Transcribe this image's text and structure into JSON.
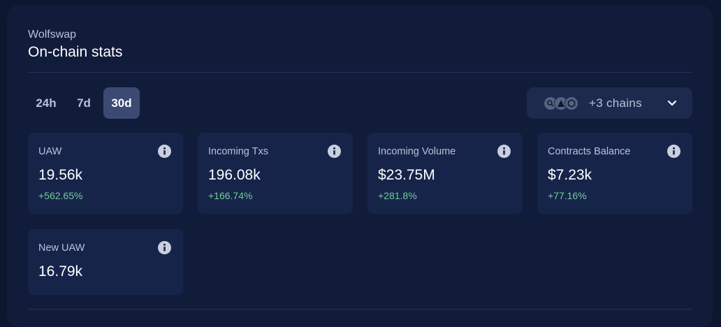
{
  "header": {
    "app_name": "Wolfswap",
    "title": "On-chain stats"
  },
  "time_ranges": [
    {
      "label": "24h",
      "active": false
    },
    {
      "label": "7d",
      "active": false
    },
    {
      "label": "30d",
      "active": true
    }
  ],
  "chain_selector": {
    "label": "+3 chains",
    "icons": [
      "chain-a-icon",
      "chain-b-icon",
      "chain-c-icon"
    ]
  },
  "stats": [
    {
      "label": "UAW",
      "value": "19.56k",
      "change": "+562.65%"
    },
    {
      "label": "Incoming Txs",
      "value": "196.08k",
      "change": "+166.74%"
    },
    {
      "label": "Incoming Volume",
      "value": "$23.75M",
      "change": "+281.8%"
    },
    {
      "label": "Contracts Balance",
      "value": "$7.23k",
      "change": "+77.16%"
    },
    {
      "label": "New UAW",
      "value": "16.79k",
      "change": ""
    }
  ],
  "colors": {
    "background": "#0d1730",
    "panel": "#111c3a",
    "card": "#17244a",
    "active_range": "#3c4a73",
    "positive": "#6fcf97"
  }
}
